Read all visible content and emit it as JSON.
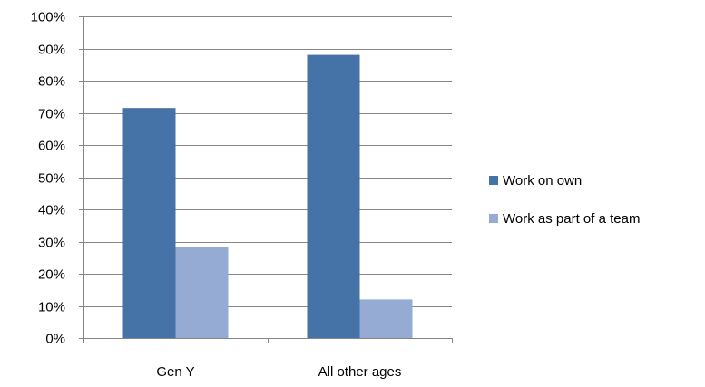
{
  "chart_data": {
    "type": "bar",
    "categories": [
      "Gen Y",
      "All other ages"
    ],
    "series": [
      {
        "name": "Work on own",
        "values": [
          71.5,
          88
        ],
        "color": "#4572A7"
      },
      {
        "name": "Work as part of a team",
        "values": [
          28.2,
          12
        ],
        "color": "#95ABD4"
      }
    ],
    "ylim": [
      0,
      100
    ],
    "yticks": [
      0,
      10,
      20,
      30,
      40,
      50,
      60,
      70,
      80,
      90,
      100
    ],
    "ytick_labels": [
      "0%",
      "10%",
      "20%",
      "30%",
      "40%",
      "50%",
      "60%",
      "70%",
      "80%",
      "90%",
      "100%"
    ],
    "grid": true,
    "legend_position": "right"
  }
}
